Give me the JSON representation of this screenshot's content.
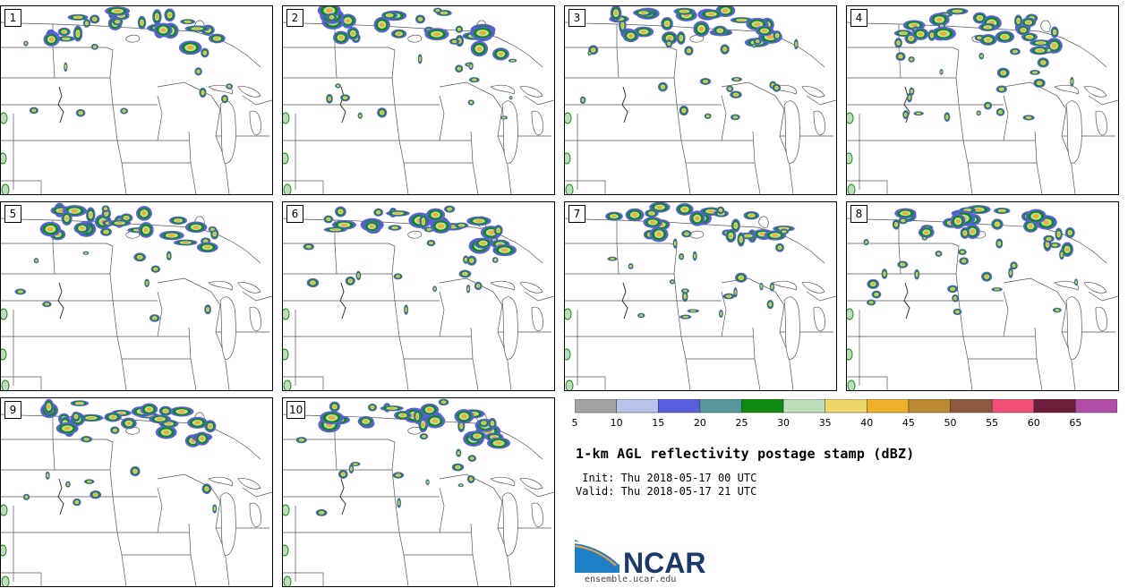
{
  "panels": [
    {
      "label": "1"
    },
    {
      "label": "2"
    },
    {
      "label": "3"
    },
    {
      "label": "4"
    },
    {
      "label": "5"
    },
    {
      "label": "6"
    },
    {
      "label": "7"
    },
    {
      "label": "8"
    },
    {
      "label": "9"
    },
    {
      "label": "10"
    }
  ],
  "colorbar": {
    "colors": [
      "#a3a3a3",
      "#b9c3ea",
      "#5a5ee0",
      "#55999a",
      "#0e8a0e",
      "#bfdcbb",
      "#ecd869",
      "#efb128",
      "#bb8931",
      "#8d5c3f",
      "#f25078",
      "#6b1d3a",
      "#b04ea8"
    ],
    "ticks": [
      "5",
      "10",
      "15",
      "20",
      "25",
      "30",
      "35",
      "40",
      "45",
      "50",
      "55",
      "60",
      "65"
    ]
  },
  "title": "1-km AGL reflectivity postage stamp (dBZ)",
  "init_line": " Init: Thu 2018-05-17 00 UTC",
  "valid_line": "Valid: Thu 2018-05-17 21 UTC",
  "logo": {
    "wordmark": "NCAR",
    "url": "ensemble.ucar.edu"
  }
}
